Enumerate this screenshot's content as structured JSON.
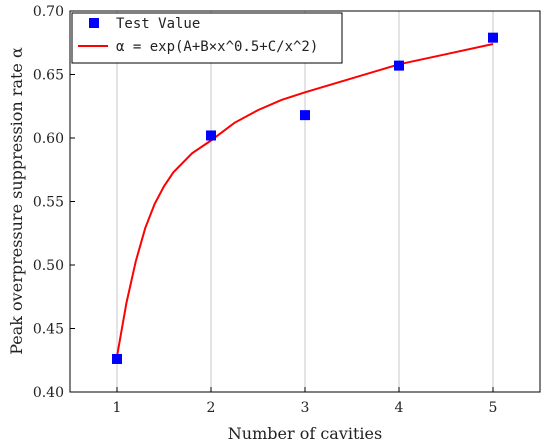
{
  "chart_data": {
    "type": "scatter",
    "xlabel": "Number of cavities",
    "ylabel": "Peak overpressure suppression rate α",
    "xlim": [
      0.5,
      5.5
    ],
    "ylim": [
      0.4,
      0.7
    ],
    "x_ticks": [
      "1",
      "2",
      "3",
      "4",
      "5"
    ],
    "y_ticks": [
      "0.40",
      "0.45",
      "0.50",
      "0.55",
      "0.60",
      "0.65",
      "0.70"
    ],
    "grid": true,
    "legend_position": "top-left",
    "series": [
      {
        "name": "Test Value",
        "kind": "scatter",
        "marker": "square",
        "color": "#0000ff",
        "x": [
          1,
          2,
          3,
          4,
          5
        ],
        "y": [
          0.426,
          0.602,
          0.618,
          0.657,
          0.679
        ]
      },
      {
        "name": "α = exp(A+B×x^0.5+C/x^2)",
        "kind": "line",
        "color": "#ff0000",
        "x": [
          1.0,
          1.1,
          1.2,
          1.3,
          1.4,
          1.5,
          1.6,
          1.8,
          2.0,
          2.25,
          2.5,
          2.75,
          3.0,
          3.5,
          4.0,
          4.5,
          5.0
        ],
        "y": [
          0.428,
          0.47,
          0.503,
          0.529,
          0.548,
          0.562,
          0.573,
          0.588,
          0.598,
          0.612,
          0.622,
          0.63,
          0.636,
          0.647,
          0.658,
          0.666,
          0.674
        ]
      }
    ]
  }
}
